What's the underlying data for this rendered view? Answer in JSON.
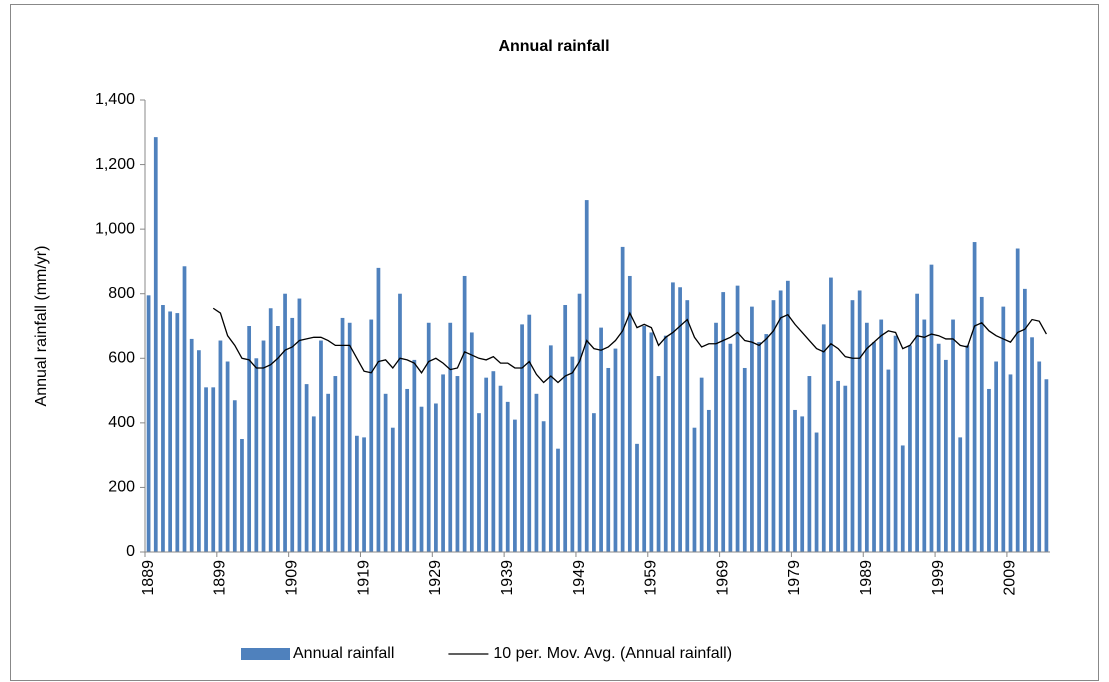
{
  "chart_data": {
    "type": "bar",
    "title": "Annual rainfall",
    "y_label": "Annual rainfall (mm/yr)",
    "categories": [
      "1889",
      null,
      null,
      null,
      null,
      null,
      null,
      null,
      null,
      null,
      "1899",
      null,
      null,
      null,
      null,
      null,
      null,
      null,
      null,
      null,
      "1909",
      null,
      null,
      null,
      null,
      null,
      null,
      null,
      null,
      null,
      "1919",
      null,
      null,
      null,
      null,
      null,
      null,
      null,
      null,
      null,
      "1929",
      null,
      null,
      null,
      null,
      null,
      null,
      null,
      null,
      null,
      "1939",
      null,
      null,
      null,
      null,
      null,
      null,
      null,
      null,
      null,
      "1949",
      null,
      null,
      null,
      null,
      null,
      null,
      null,
      null,
      null,
      "1959",
      null,
      null,
      null,
      null,
      null,
      null,
      null,
      null,
      null,
      "1969",
      null,
      null,
      null,
      null,
      null,
      null,
      null,
      null,
      null,
      "1979",
      null,
      null,
      null,
      null,
      null,
      null,
      null,
      null,
      null,
      "1989",
      null,
      null,
      null,
      null,
      null,
      null,
      null,
      null,
      null,
      "1999",
      null,
      null,
      null,
      null,
      null,
      null,
      null,
      null,
      null,
      "2009",
      null,
      null,
      null,
      null,
      null
    ],
    "series": [
      {
        "name": "Annual rainfall",
        "color": "#4f81bd",
        "values": [
          795,
          1285,
          765,
          745,
          740,
          885,
          660,
          625,
          510,
          510,
          655,
          590,
          470,
          350,
          700,
          600,
          655,
          755,
          700,
          800,
          725,
          785,
          520,
          420,
          655,
          490,
          545,
          725,
          710,
          360,
          355,
          720,
          880,
          490,
          385,
          800,
          505,
          595,
          450,
          710,
          460,
          550,
          710,
          545,
          855,
          680,
          430,
          540,
          560,
          515,
          465,
          410,
          705,
          735,
          490,
          405,
          640,
          320,
          765,
          605,
          800,
          1090,
          430,
          695,
          570,
          630,
          945,
          855,
          335,
          700,
          680,
          545,
          670,
          835,
          820,
          780,
          385,
          540,
          440,
          710,
          805,
          645,
          825,
          570,
          760,
          650,
          675,
          780,
          810,
          840,
          440,
          420,
          545,
          370,
          705,
          850,
          530,
          515,
          780,
          810,
          710,
          650,
          720,
          565,
          670,
          330,
          640,
          800,
          720,
          890,
          645,
          595,
          720,
          355,
          640,
          960,
          790,
          505,
          590,
          760,
          550,
          940,
          815,
          665,
          590,
          535
        ]
      },
      {
        "name": "10 per. Mov. Avg. (Annual rainfall)",
        "type": "line",
        "color": "#000000",
        "values": [
          null,
          null,
          null,
          null,
          null,
          null,
          null,
          null,
          null,
          755,
          740,
          670,
          640,
          600,
          595,
          570,
          570,
          580,
          600,
          625,
          635,
          655,
          660,
          665,
          665,
          655,
          640,
          640,
          640,
          600,
          560,
          555,
          590,
          595,
          570,
          600,
          595,
          585,
          555,
          590,
          600,
          585,
          565,
          570,
          620,
          610,
          600,
          595,
          605,
          585,
          585,
          570,
          570,
          590,
          550,
          525,
          545,
          525,
          545,
          555,
          590,
          655,
          630,
          625,
          635,
          655,
          685,
          740,
          695,
          705,
          695,
          640,
          665,
          680,
          700,
          720,
          665,
          635,
          645,
          645,
          655,
          665,
          680,
          655,
          650,
          640,
          660,
          685,
          725,
          735,
          705,
          680,
          655,
          630,
          620,
          645,
          630,
          605,
          600,
          600,
          630,
          650,
          670,
          685,
          680,
          630,
          640,
          670,
          665,
          675,
          670,
          660,
          660,
          640,
          635,
          700,
          710,
          685,
          670,
          660,
          650,
          680,
          690,
          720,
          715,
          675
        ]
      }
    ],
    "ylim": [
      0,
      1400
    ],
    "yticks": [
      0,
      200,
      400,
      600,
      800,
      {
        "value": 1000,
        "label": "1,000"
      },
      {
        "value": 1200,
        "label": "1,200"
      },
      {
        "value": 1400,
        "label": "1,400"
      }
    ],
    "grid": false,
    "legend": "bottom"
  }
}
